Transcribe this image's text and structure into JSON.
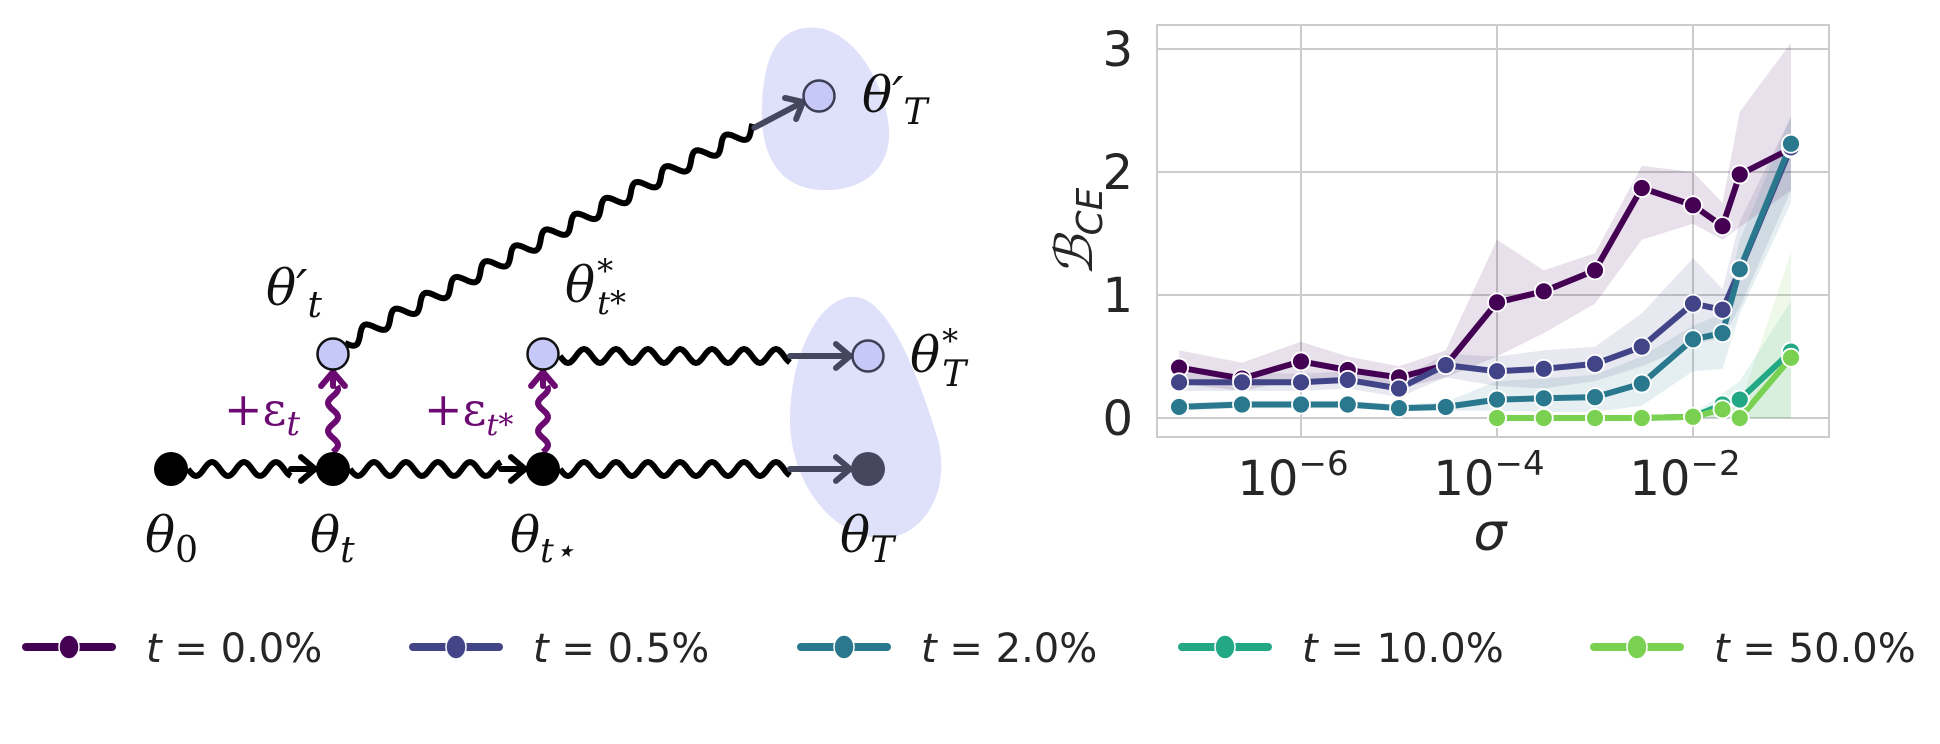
{
  "diagram": {
    "nodes": {
      "theta_0": "θ",
      "theta_0_sub": "0",
      "theta_t": "θ",
      "theta_t_sub": "t",
      "theta_tstar": "θ",
      "theta_tstar_sub": "t⋆",
      "theta_T": "θ",
      "theta_T_sub": "T",
      "theta_t_prime": "θ′",
      "theta_t_prime_sub": "t",
      "theta_tstar_star": "θ",
      "theta_tstar_star_sup": "*",
      "theta_tstar_star_sub": "t*",
      "theta_T_star": "θ",
      "theta_T_star_sup": "*",
      "theta_T_star_sub": "T",
      "theta_T_prime": "θ′",
      "theta_T_prime_sub": "T"
    },
    "perturbations": {
      "eps_t": "+ε",
      "eps_t_sub": "t",
      "eps_tstar": "+ε",
      "eps_tstar_sub": "t*"
    },
    "colors": {
      "node_main": "#000000",
      "node_final": "#46465e",
      "node_perturbed": "#c6c8f7",
      "blob": "#dfe0fa",
      "perturb_arrow": "#6b0a70",
      "arrow_tip": "#45475e"
    }
  },
  "chart_data": {
    "type": "line",
    "title": "",
    "xlabel": "σ",
    "ylabel": "ℬ",
    "ylabel_sub": "CE",
    "xscale": "log",
    "xlim_log10": [
      -7.5,
      -0.6
    ],
    "ylim": [
      -0.15,
      3.2
    ],
    "grid": true,
    "xticks": [
      {
        "base": "10",
        "exp": "−6",
        "log10": -6
      },
      {
        "base": "10",
        "exp": "−4",
        "log10": -4
      },
      {
        "base": "10",
        "exp": "−2",
        "log10": -2
      }
    ],
    "yticks": [
      {
        "label": "0",
        "value": 0
      },
      {
        "label": "1",
        "value": 1
      },
      {
        "label": "2",
        "value": 2
      },
      {
        "label": "3",
        "value": 3
      }
    ],
    "legend_position": "bottom",
    "series": [
      {
        "name": "t = 0.0%",
        "label_prefix": "t",
        "label_value": " = 0.0%",
        "color": "#440154",
        "x": [
          5.7e-08,
          2.5e-07,
          1e-06,
          3e-06,
          1e-05,
          3e-05,
          0.0001,
          0.0003,
          0.001,
          0.003,
          0.01,
          0.02,
          0.03,
          0.1
        ],
        "y": [
          0.41,
          0.32,
          0.46,
          0.39,
          0.33,
          0.43,
          0.94,
          1.03,
          1.2,
          1.87,
          1.73,
          1.56,
          1.98,
          2.19
        ],
        "lo": [
          0.28,
          0.22,
          0.32,
          0.28,
          0.24,
          0.33,
          0.5,
          0.69,
          0.93,
          1.45,
          1.58,
          1.45,
          1.55,
          1.85
        ],
        "hi": [
          0.55,
          0.45,
          0.62,
          0.5,
          0.42,
          0.55,
          1.45,
          1.2,
          1.34,
          2.05,
          2.0,
          1.75,
          2.49,
          3.05
        ]
      },
      {
        "name": "t = 0.5%",
        "label_prefix": "t",
        "label_value": " = 0.5%",
        "color": "#414487",
        "x": [
          5.7e-08,
          2.5e-07,
          1e-06,
          3e-06,
          1e-05,
          3e-05,
          0.0001,
          0.0003,
          0.001,
          0.003,
          0.01,
          0.02,
          0.03,
          0.1
        ],
        "y": [
          0.29,
          0.29,
          0.29,
          0.31,
          0.24,
          0.43,
          0.38,
          0.4,
          0.44,
          0.58,
          0.93,
          0.88,
          1.2,
          2.2
        ],
        "lo": [
          0.22,
          0.22,
          0.22,
          0.24,
          0.17,
          0.33,
          0.26,
          0.24,
          0.3,
          0.42,
          0.6,
          0.65,
          0.9,
          1.85
        ],
        "hi": [
          0.36,
          0.37,
          0.36,
          0.38,
          0.31,
          0.52,
          0.5,
          0.55,
          0.58,
          0.85,
          1.3,
          1.05,
          1.6,
          2.45
        ]
      },
      {
        "name": "t = 2.0%",
        "label_prefix": "t",
        "label_value": " = 2.0%",
        "color": "#2a788e",
        "x": [
          5.7e-08,
          2.5e-07,
          1e-06,
          3e-06,
          1e-05,
          3e-05,
          0.0001,
          0.0003,
          0.001,
          0.003,
          0.01,
          0.02,
          0.03,
          0.1
        ],
        "y": [
          0.09,
          0.11,
          0.11,
          0.11,
          0.08,
          0.09,
          0.15,
          0.16,
          0.17,
          0.28,
          0.64,
          0.69,
          1.21,
          2.23
        ],
        "lo": [
          0.06,
          0.08,
          0.08,
          0.08,
          0.06,
          0.06,
          0.06,
          0.05,
          0.05,
          0.1,
          0.38,
          0.4,
          0.85,
          1.75
        ],
        "hi": [
          0.12,
          0.14,
          0.14,
          0.14,
          0.11,
          0.13,
          0.3,
          0.32,
          0.35,
          0.5,
          0.75,
          0.85,
          1.45,
          2.45
        ]
      },
      {
        "name": "t = 10.0%",
        "label_prefix": "t",
        "label_value": " = 10.0%",
        "color": "#22a884",
        "x": [
          0.0001,
          0.0003,
          0.001,
          0.003,
          0.01,
          0.02,
          0.03,
          0.1
        ],
        "y": [
          0.0,
          0.0,
          0.0,
          0.0,
          0.01,
          0.11,
          0.15,
          0.54
        ],
        "lo": [
          0.0,
          0.0,
          0.0,
          0.0,
          0.0,
          0.0,
          0.0,
          0.0
        ],
        "hi": [
          0.01,
          0.01,
          0.01,
          0.01,
          0.03,
          0.2,
          0.3,
          0.95
        ]
      },
      {
        "name": "t = 50.0%",
        "label_prefix": "t",
        "label_value": " = 50.0%",
        "color": "#7ad151",
        "x": [
          0.0001,
          0.0003,
          0.001,
          0.003,
          0.01,
          0.02,
          0.03,
          0.1
        ],
        "y": [
          0.0,
          0.0,
          0.0,
          0.0,
          0.01,
          0.07,
          0.0,
          0.49
        ],
        "lo": [
          0.0,
          0.0,
          0.0,
          0.0,
          0.0,
          0.0,
          0.0,
          0.0
        ],
        "hi": [
          0.01,
          0.01,
          0.01,
          0.01,
          0.02,
          0.15,
          0.1,
          1.35
        ]
      }
    ]
  }
}
